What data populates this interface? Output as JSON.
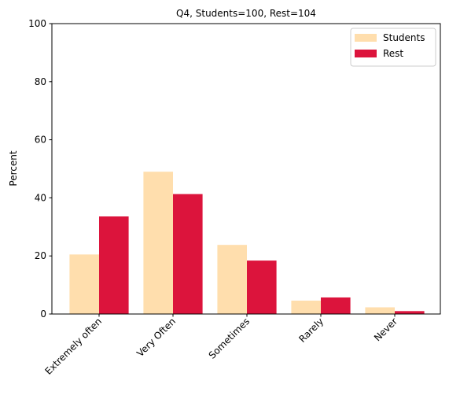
{
  "chart_data": {
    "type": "bar",
    "title": "Q4, Students=100, Rest=104",
    "xlabel": "",
    "ylabel": "Percent",
    "ylim": [
      0,
      100
    ],
    "yticks": [
      0,
      20,
      40,
      60,
      80,
      100
    ],
    "grid": false,
    "legend_position": "top-right",
    "categories": [
      "Extremely often",
      "Very Often",
      "Sometimes",
      "Rarely",
      "Never"
    ],
    "series": [
      {
        "name": "Students",
        "color": "#FFDEAD",
        "values": [
          20.5,
          49.0,
          23.8,
          4.6,
          2.3
        ]
      },
      {
        "name": "Rest",
        "color": "#DC143C",
        "values": [
          33.6,
          41.3,
          18.4,
          5.7,
          1.0
        ]
      }
    ]
  }
}
